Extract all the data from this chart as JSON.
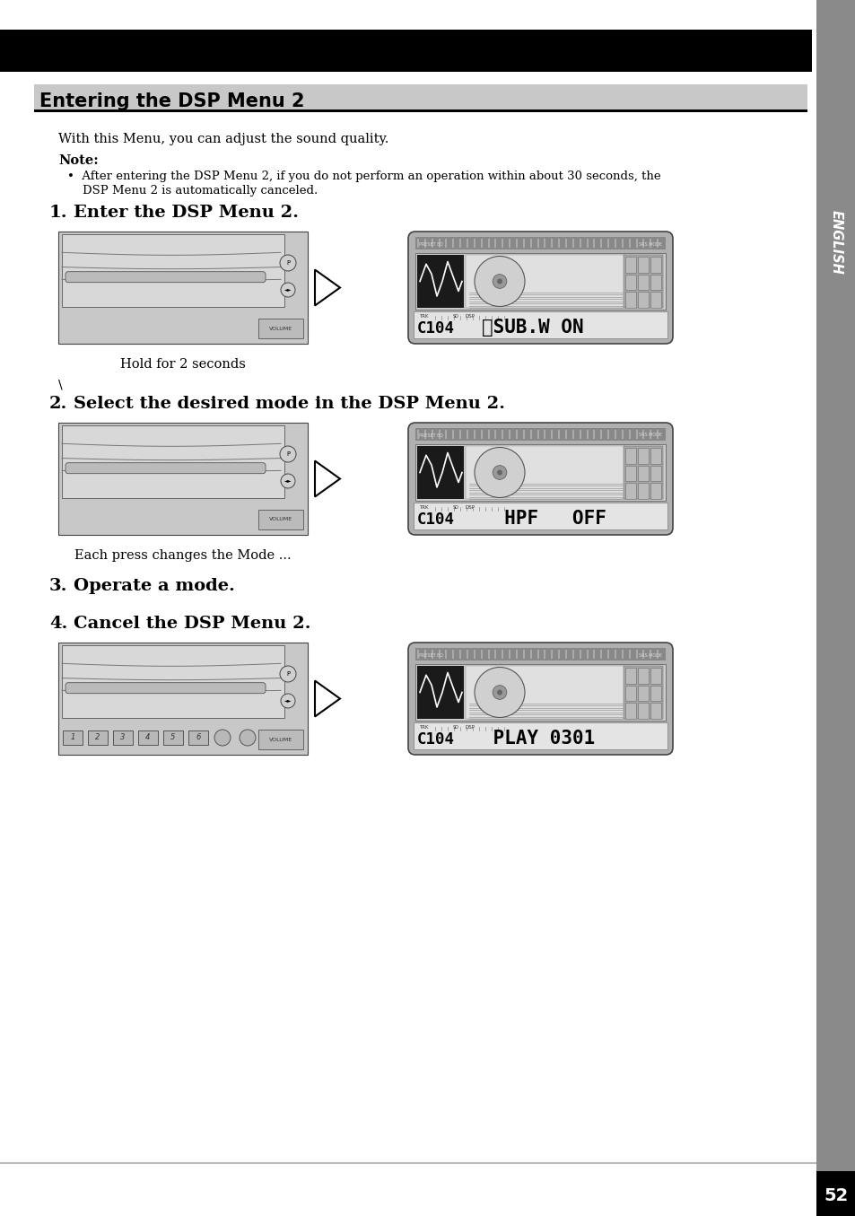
{
  "page_bg": "#ffffff",
  "top_bar_color": "#000000",
  "title": "Entering the DSP Menu 2",
  "title_bg": "#cccccc",
  "body_intro": "With this Menu, you can adjust the sound quality.",
  "note_bold": "Note:",
  "note_line1": "•  After entering the DSP Menu 2, if you do not perform an operation within about 30 seconds, the",
  "note_line2": "    DSP Menu 2 is automatically canceled.",
  "step1_num": "1.",
  "step1_text": "Enter the DSP Menu 2.",
  "step1_caption": "Hold for 2 seconds",
  "step2_num": "2.",
  "step2_text": "Select the desired mode in the DSP Menu 2.",
  "step2_caption": "Each press changes the Mode ...",
  "step3_num": "3.",
  "step3_text": "Operate a mode.",
  "step4_num": "4.",
  "step4_text": "Cancel the DSP Menu 2.",
  "lcd1_text": "C104  DSP␉SUB.W  ON",
  "lcd2_text": "C104  DSP  HPF    OFF",
  "lcd4_text": "C104  DSP PLAY  0301",
  "sidebar_color": "#8a8a8a",
  "sidebar_text": "ENGLISH",
  "page_number": "52",
  "page_bg_bottom": "#000000"
}
